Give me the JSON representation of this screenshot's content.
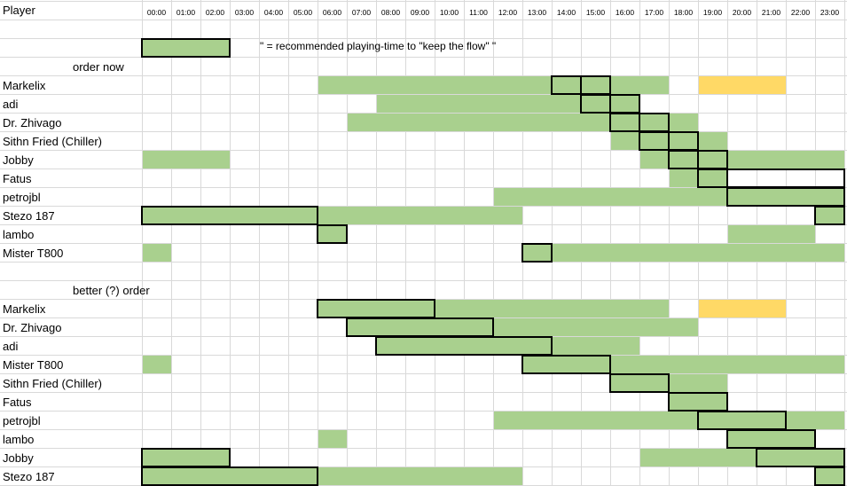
{
  "header": {
    "player_label": "Player",
    "hours": [
      "00:00",
      "01:00",
      "02:00",
      "03:00",
      "04:00",
      "05:00",
      "06:00",
      "07:00",
      "08:00",
      "09:00",
      "10:00",
      "11:00",
      "12:00",
      "13:00",
      "14:00",
      "15:00",
      "16:00",
      "17:00",
      "18:00",
      "19:00",
      "20:00",
      "21:00",
      "22:00",
      "23:00"
    ]
  },
  "legend": {
    "text": "\" = recommended playing-time to \"keep the flow\" \"",
    "sample": {
      "start": 0,
      "end": 3
    }
  },
  "colors": {
    "green": "#a9d08e",
    "yellow": "#ffd966",
    "grid": "#d9d9d9"
  },
  "sections": [
    {
      "title": "order now",
      "rows": [
        {
          "name": "Markelix",
          "green": [
            [
              6,
              14
            ],
            [
              14,
              15
            ],
            [
              15,
              18
            ]
          ],
          "yellow": [
            [
              19,
              22
            ]
          ],
          "boxes": [
            [
              14,
              15
            ],
            [
              15,
              16
            ]
          ]
        },
        {
          "name": "adi",
          "green": [
            [
              8,
              17
            ]
          ],
          "yellow": [],
          "boxes": [
            [
              15,
              16
            ],
            [
              16,
              17
            ]
          ]
        },
        {
          "name": "Dr. Zhivago",
          "green": [
            [
              7,
              19
            ]
          ],
          "yellow": [],
          "boxes": [
            [
              16,
              17
            ],
            [
              17,
              18
            ]
          ]
        },
        {
          "name": "Sithn Fried (Chiller)",
          "green": [
            [
              16,
              20
            ]
          ],
          "yellow": [],
          "boxes": [
            [
              17,
              18
            ],
            [
              18,
              19
            ]
          ]
        },
        {
          "name": "Jobby",
          "green": [
            [
              0,
              3
            ],
            [
              17,
              24
            ]
          ],
          "yellow": [],
          "boxes": [
            [
              18,
              19
            ],
            [
              19,
              20
            ]
          ]
        },
        {
          "name": "Fatus",
          "green": [
            [
              18,
              20
            ]
          ],
          "yellow": [],
          "boxes": [
            [
              19,
              20
            ],
            [
              20,
              24
            ]
          ]
        },
        {
          "name": "petrojbl",
          "green": [
            [
              12,
              24
            ]
          ],
          "yellow": [],
          "boxes": [
            [
              20,
              24
            ]
          ]
        },
        {
          "name": "Stezo 187",
          "green": [
            [
              0,
              13
            ],
            [
              23,
              24
            ]
          ],
          "yellow": [],
          "boxes": [
            [
              0,
              6
            ],
            [
              23,
              24
            ]
          ]
        },
        {
          "name": "lambo",
          "green": [
            [
              6,
              7
            ],
            [
              20,
              23
            ]
          ],
          "yellow": [],
          "boxes": [
            [
              6,
              7
            ]
          ]
        },
        {
          "name": "Mister T800",
          "green": [
            [
              0,
              1
            ],
            [
              13,
              24
            ]
          ],
          "yellow": [],
          "boxes": [
            [
              13,
              14
            ]
          ]
        }
      ]
    },
    {
      "title": "better (?) order",
      "rows": [
        {
          "name": "Markelix",
          "green": [
            [
              6,
              18
            ]
          ],
          "yellow": [
            [
              19,
              22
            ]
          ],
          "boxes": [
            [
              6,
              10
            ]
          ]
        },
        {
          "name": "Dr. Zhivago",
          "green": [
            [
              7,
              19
            ]
          ],
          "yellow": [],
          "boxes": [
            [
              7,
              12
            ]
          ]
        },
        {
          "name": "adi",
          "green": [
            [
              8,
              17
            ]
          ],
          "yellow": [],
          "boxes": [
            [
              8,
              14
            ]
          ]
        },
        {
          "name": "Mister T800",
          "green": [
            [
              0,
              1
            ],
            [
              13,
              24
            ]
          ],
          "yellow": [],
          "boxes": [
            [
              13,
              16
            ]
          ]
        },
        {
          "name": "Sithn Fried (Chiller)",
          "green": [
            [
              16,
              20
            ]
          ],
          "yellow": [],
          "boxes": [
            [
              16,
              18
            ]
          ]
        },
        {
          "name": "Fatus",
          "green": [
            [
              18,
              20
            ]
          ],
          "yellow": [],
          "boxes": [
            [
              18,
              20
            ]
          ]
        },
        {
          "name": "petrojbl",
          "green": [
            [
              12,
              24
            ]
          ],
          "yellow": [],
          "boxes": [
            [
              19,
              22
            ]
          ]
        },
        {
          "name": "lambo",
          "green": [
            [
              6,
              7
            ],
            [
              20,
              23
            ]
          ],
          "yellow": [],
          "boxes": [
            [
              20,
              23
            ]
          ]
        },
        {
          "name": "Jobby",
          "green": [
            [
              0,
              3
            ],
            [
              17,
              24
            ]
          ],
          "yellow": [],
          "boxes": [
            [
              0,
              3
            ],
            [
              21,
              24
            ]
          ]
        },
        {
          "name": "Stezo 187",
          "green": [
            [
              0,
              13
            ],
            [
              23,
              24
            ]
          ],
          "yellow": [],
          "boxes": [
            [
              0,
              6
            ],
            [
              23,
              24
            ]
          ]
        }
      ]
    }
  ]
}
